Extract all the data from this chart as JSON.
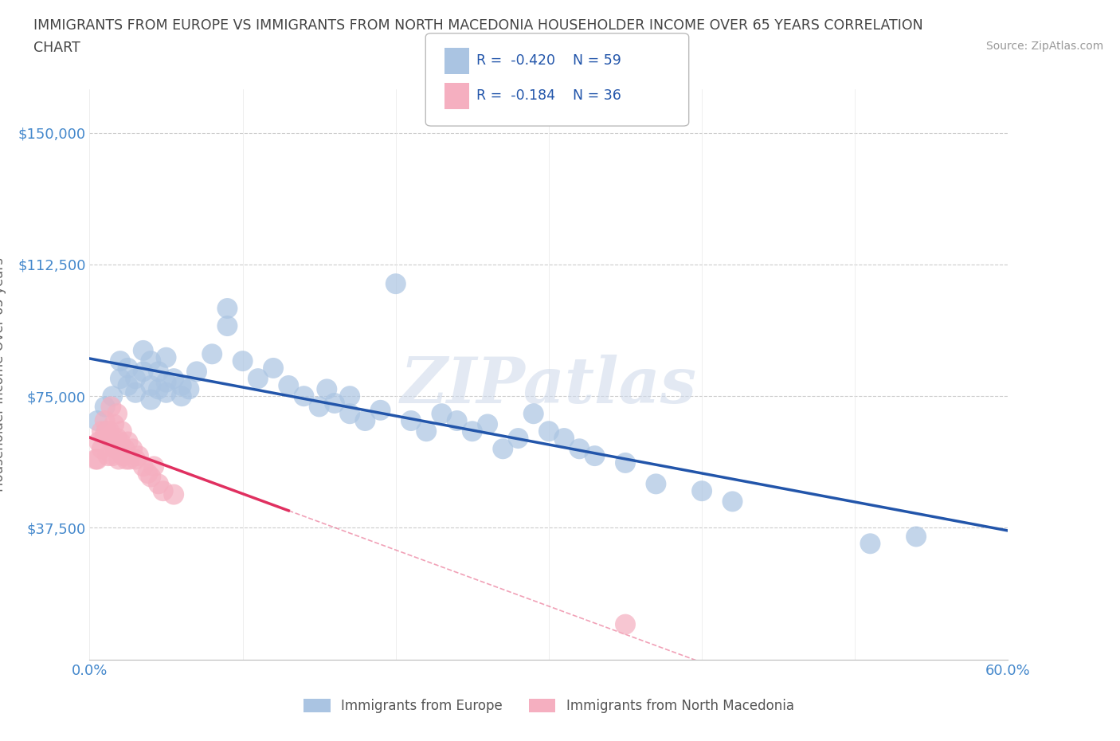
{
  "title_line1": "IMMIGRANTS FROM EUROPE VS IMMIGRANTS FROM NORTH MACEDONIA HOUSEHOLDER INCOME OVER 65 YEARS CORRELATION",
  "title_line2": "CHART",
  "source": "Source: ZipAtlas.com",
  "ylabel": "Householder Income Over 65 years",
  "watermark": "ZIPatlas",
  "xlim": [
    0.0,
    0.6
  ],
  "ylim": [
    0,
    162500
  ],
  "yticks": [
    0,
    37500,
    75000,
    112500,
    150000
  ],
  "xticks": [
    0.0,
    0.1,
    0.2,
    0.3,
    0.4,
    0.5,
    0.6
  ],
  "color_europe": "#aac4e2",
  "color_macedonia": "#f5afc0",
  "color_europe_line": "#2255aa",
  "color_macedonia_line": "#e03060",
  "color_axis_labels": "#4488cc",
  "background_color": "#ffffff",
  "grid_color": "#cccccc",
  "title_color": "#444444",
  "europe_scatter_x": [
    0.005,
    0.01,
    0.015,
    0.02,
    0.02,
    0.025,
    0.025,
    0.03,
    0.03,
    0.035,
    0.035,
    0.04,
    0.04,
    0.04,
    0.045,
    0.045,
    0.05,
    0.05,
    0.05,
    0.055,
    0.06,
    0.06,
    0.065,
    0.07,
    0.08,
    0.09,
    0.09,
    0.1,
    0.11,
    0.12,
    0.13,
    0.14,
    0.15,
    0.155,
    0.16,
    0.17,
    0.17,
    0.18,
    0.19,
    0.2,
    0.21,
    0.22,
    0.23,
    0.24,
    0.25,
    0.26,
    0.27,
    0.28,
    0.29,
    0.3,
    0.31,
    0.32,
    0.33,
    0.35,
    0.37,
    0.4,
    0.42,
    0.51,
    0.54
  ],
  "europe_scatter_y": [
    68000,
    72000,
    75000,
    80000,
    85000,
    78000,
    83000,
    76000,
    80000,
    82000,
    88000,
    74000,
    78000,
    85000,
    77000,
    82000,
    76000,
    79000,
    86000,
    80000,
    75000,
    78000,
    77000,
    82000,
    87000,
    100000,
    95000,
    85000,
    80000,
    83000,
    78000,
    75000,
    72000,
    77000,
    73000,
    70000,
    75000,
    68000,
    71000,
    107000,
    68000,
    65000,
    70000,
    68000,
    65000,
    67000,
    60000,
    63000,
    70000,
    65000,
    63000,
    60000,
    58000,
    56000,
    50000,
    48000,
    45000,
    33000,
    35000
  ],
  "macedonia_scatter_x": [
    0.004,
    0.005,
    0.006,
    0.008,
    0.008,
    0.01,
    0.01,
    0.011,
    0.012,
    0.013,
    0.014,
    0.015,
    0.015,
    0.016,
    0.017,
    0.018,
    0.018,
    0.019,
    0.02,
    0.021,
    0.022,
    0.023,
    0.024,
    0.025,
    0.026,
    0.028,
    0.03,
    0.032,
    0.035,
    0.038,
    0.04,
    0.042,
    0.045,
    0.048,
    0.055,
    0.35
  ],
  "macedonia_scatter_y": [
    57000,
    57000,
    62000,
    60000,
    65000,
    64000,
    68000,
    65000,
    58000,
    65000,
    72000,
    62000,
    58000,
    67000,
    60000,
    63000,
    70000,
    57000,
    62000,
    65000,
    58000,
    60000,
    57000,
    62000,
    57000,
    60000,
    57000,
    58000,
    55000,
    53000,
    52000,
    55000,
    50000,
    48000,
    47000,
    10000
  ]
}
